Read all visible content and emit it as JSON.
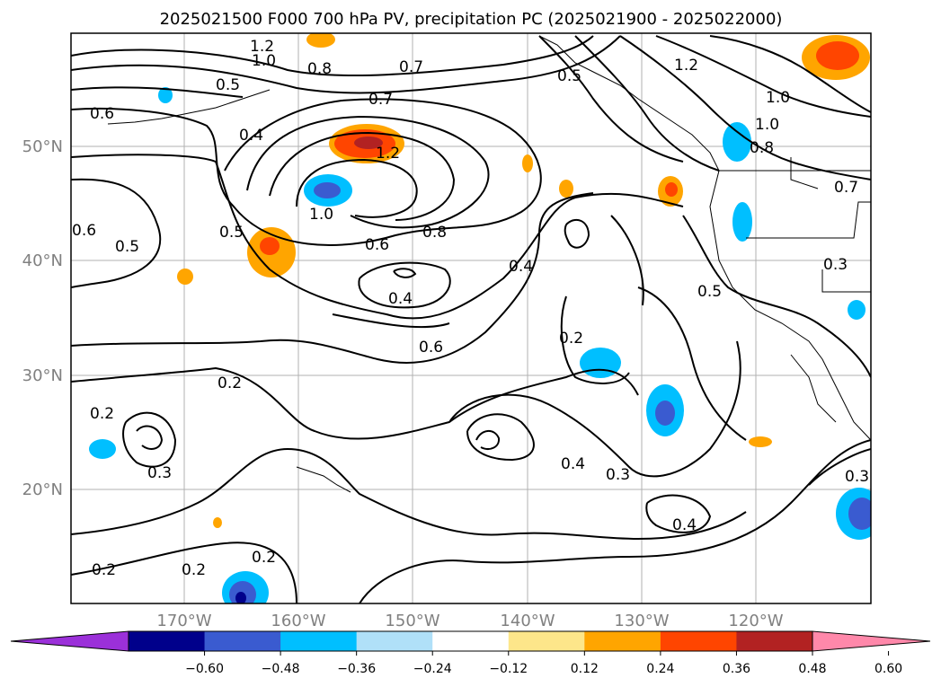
{
  "title": "2025021500 F000 700 hPa PV, precipitation PC (2025021900 - 2025022000)",
  "axes": {
    "lat_ticks": [
      "50°N",
      "40°N",
      "30°N",
      "20°N"
    ],
    "lon_ticks": [
      "170°W",
      "160°W",
      "150°W",
      "140°W",
      "130°W",
      "120°W"
    ]
  },
  "colorbar": {
    "colors": [
      "#9b30d9",
      "#00008b",
      "#3a5bd0",
      "#00bfff",
      "#b0e0f8",
      "#ffffff",
      "#fde68a",
      "#ffa500",
      "#ff4500",
      "#b22222",
      "#ff88aa"
    ],
    "ticks": [
      "−0.60",
      "−0.48",
      "−0.36",
      "−0.24",
      "−0.12",
      "0.12",
      "0.24",
      "0.36",
      "0.48",
      "0.60"
    ]
  },
  "contour_labels": [
    "1.2",
    "1.0",
    "0.8",
    "0.7",
    "0.5",
    "0.5",
    "0.4",
    "0.6",
    "0.7",
    "1.2",
    "1.0",
    "0.5",
    "0.6",
    "0.8",
    "0.4",
    "0.6",
    "0.6",
    "0.5",
    "0.4",
    "0.2",
    "0.2",
    "0.2",
    "0.3",
    "0.4",
    "0.3",
    "0.2",
    "0.2",
    "0.2",
    "0.4",
    "0.5",
    "1.2",
    "1.0",
    "1.0",
    "0.8",
    "0.7",
    "0.3",
    "0.3"
  ]
}
